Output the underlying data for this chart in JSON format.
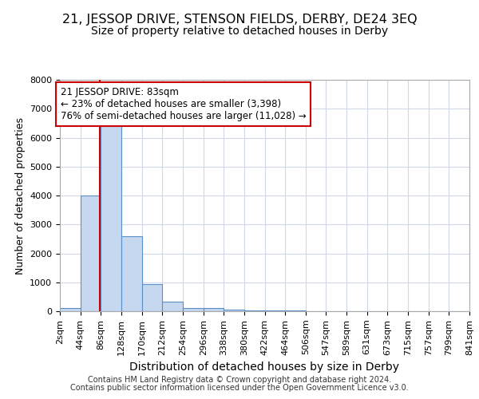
{
  "title1": "21, JESSOP DRIVE, STENSON FIELDS, DERBY, DE24 3EQ",
  "title2": "Size of property relative to detached houses in Derby",
  "xlabel": "Distribution of detached houses by size in Derby",
  "ylabel": "Number of detached properties",
  "footer1": "Contains HM Land Registry data © Crown copyright and database right 2024.",
  "footer2": "Contains public sector information licensed under the Open Government Licence v3.0.",
  "annotation_line1": "21 JESSOP DRIVE: 83sqm",
  "annotation_line2": "← 23% of detached houses are smaller (3,398)",
  "annotation_line3": "76% of semi-detached houses are larger (11,028) →",
  "bar_edges": [
    2,
    44,
    86,
    128,
    170,
    212,
    254,
    296,
    338,
    380,
    422,
    464,
    506,
    547,
    589,
    631,
    673,
    715,
    757,
    799,
    841
  ],
  "bar_heights": [
    100,
    4000,
    6600,
    2600,
    950,
    330,
    120,
    100,
    50,
    30,
    20,
    15,
    12,
    10,
    8,
    6,
    5,
    4,
    3,
    2
  ],
  "bar_color": "#c5d8f0",
  "bar_edge_color": "#5b8fc8",
  "property_size": 83,
  "vline_color": "#cc0000",
  "ylim": [
    0,
    8000
  ],
  "yticks": [
    0,
    1000,
    2000,
    3000,
    4000,
    5000,
    6000,
    7000,
    8000
  ],
  "bg_color": "#ffffff",
  "axes_bg_color": "#ffffff",
  "grid_color": "#d0d8e8",
  "tick_label_fontsize": 8,
  "title1_fontsize": 11.5,
  "title2_fontsize": 10,
  "ylabel_fontsize": 9,
  "xlabel_fontsize": 10
}
